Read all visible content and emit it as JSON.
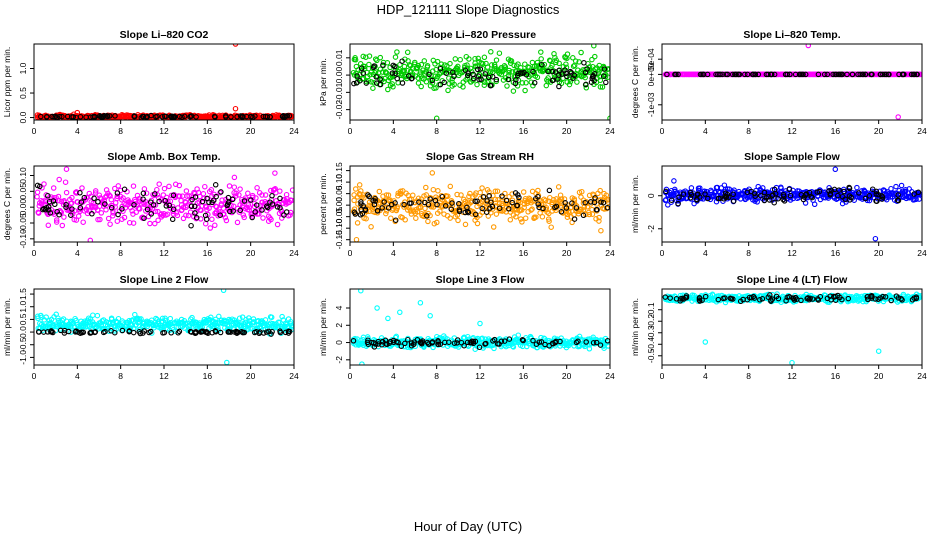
{
  "figure": {
    "title": "HDP_121111  Slope Diagnostics",
    "xlabel": "Hour of Day (UTC)"
  },
  "chart_data": [
    {
      "type": "scatter",
      "title": "Slope Li–820 CO2",
      "ylabel": "Licor ppm per min.",
      "xlim": [
        0,
        24
      ],
      "ylim": [
        -0.05,
        1.5
      ],
      "x_ticks": [
        "0",
        "4",
        "8",
        "12",
        "16",
        "20",
        "24"
      ],
      "y_ticks": [
        "0.0",
        "0.5",
        "1.0"
      ],
      "y_tick_values": [
        0,
        0.5,
        1.0
      ],
      "color": "#ff0000",
      "bulk": {
        "center": 0.02,
        "spread": 0.03,
        "overlay_center": 0.02,
        "overlay_spread": 0.015
      },
      "outliers": [
        {
          "x": 18.6,
          "y": 1.5
        },
        {
          "x": 18.6,
          "y": 0.18
        },
        {
          "x": 4.0,
          "y": 0.1
        }
      ]
    },
    {
      "type": "scatter",
      "title": "Slope Li–820 Pressure",
      "ylabel": "kPa per min.",
      "xlim": [
        0,
        24
      ],
      "ylim": [
        -0.026,
        0.018
      ],
      "x_ticks": [
        "0",
        "4",
        "8",
        "12",
        "16",
        "20",
        "24"
      ],
      "y_ticks": [
        "-0.02",
        "-0.01",
        "0.00",
        "0.01"
      ],
      "y_tick_values": [
        -0.02,
        -0.01,
        0.0,
        0.01
      ],
      "color": "#00cc00",
      "bulk": {
        "center": 0.002,
        "spread": 0.008,
        "overlay_center": 0.0,
        "overlay_spread": 0.006
      },
      "outliers": [
        {
          "x": 22.5,
          "y": 0.017
        },
        {
          "x": 8.0,
          "y": -0.025
        },
        {
          "x": 24.0,
          "y": -0.025
        }
      ]
    },
    {
      "type": "scatter",
      "title": "Slope Li–820 Temp.",
      "ylabel": "degrees C per min.",
      "xlim": [
        0,
        24
      ],
      "ylim": [
        -0.0015,
        0.001
      ],
      "x_ticks": [
        "0",
        "4",
        "8",
        "12",
        "16",
        "20",
        "24"
      ],
      "y_ticks": [
        "-1e-03",
        "0e+00",
        "5e-04"
      ],
      "y_tick_values": [
        -0.001,
        0.0,
        0.0005
      ],
      "color": "#ff00ff",
      "bulk": {
        "center": 0.0,
        "spread": 0.0,
        "overlay_center": 0.0,
        "overlay_spread": 0.0
      },
      "outliers": [
        {
          "x": 13.5,
          "y": 0.00095
        },
        {
          "x": 21.8,
          "y": -0.0014
        }
      ]
    },
    {
      "type": "scatter",
      "title": "Slope Amb. Box Temp.",
      "ylabel": "degrees C per min.",
      "xlim": [
        0,
        24
      ],
      "ylim": [
        -0.11,
        0.13
      ],
      "x_ticks": [
        "0",
        "4",
        "8",
        "12",
        "16",
        "20",
        "24"
      ],
      "y_ticks": [
        "-0.10",
        "-0.05",
        "0.00",
        "0.05",
        "0.10"
      ],
      "y_tick_values": [
        -0.1,
        -0.05,
        0.0,
        0.05,
        0.1
      ],
      "color": "#ff00ff",
      "bulk": {
        "center": 0.01,
        "spread": 0.055,
        "overlay_center": 0.01,
        "overlay_spread": 0.045
      },
      "outliers": [
        {
          "x": 3.0,
          "y": 0.12
        },
        {
          "x": 5.2,
          "y": -0.105
        }
      ]
    },
    {
      "type": "scatter",
      "title": "Slope Gas Stream RH",
      "ylabel": "percent per min.",
      "xlim": [
        0,
        24
      ],
      "ylim": [
        -0.16,
        0.17
      ],
      "x_ticks": [
        "0",
        "4",
        "8",
        "12",
        "16",
        "20",
        "24"
      ],
      "y_ticks": [
        "-0.15",
        "-0.10",
        "-0.05",
        "0.00",
        "0.05",
        "0.10",
        "0.15"
      ],
      "y_tick_values": [
        -0.15,
        -0.1,
        -0.05,
        0.0,
        0.05,
        0.1,
        0.15
      ],
      "color": "#ff9900",
      "bulk": {
        "center": 0.0,
        "spread": 0.06,
        "overlay_center": 0.0,
        "overlay_spread": 0.045
      },
      "outliers": [
        {
          "x": 0.6,
          "y": -0.15
        },
        {
          "x": 7.6,
          "y": 0.14
        }
      ]
    },
    {
      "type": "scatter",
      "title": "Slope Sample Flow",
      "ylabel": "ml/min per min.",
      "xlim": [
        0,
        24
      ],
      "ylim": [
        -2.8,
        1.8
      ],
      "x_ticks": [
        "0",
        "4",
        "8",
        "12",
        "16",
        "20",
        "24"
      ],
      "y_ticks": [
        "-2",
        "0"
      ],
      "y_tick_values": [
        -2,
        0
      ],
      "color": "#0000ff",
      "bulk": {
        "center": 0.05,
        "spread": 0.35,
        "overlay_center": 0.0,
        "overlay_spread": 0.3
      },
      "outliers": [
        {
          "x": 16.0,
          "y": 1.6
        },
        {
          "x": 19.7,
          "y": -2.6
        },
        {
          "x": 1.1,
          "y": 0.9
        }
      ]
    },
    {
      "type": "scatter",
      "title": "Slope Line 2 Flow",
      "ylabel": "ml/min per min.",
      "xlim": [
        0,
        24
      ],
      "ylim": [
        -1.3,
        1.7
      ],
      "x_ticks": [
        "0",
        "4",
        "8",
        "12",
        "16",
        "20",
        "24"
      ],
      "y_ticks": [
        "-1.0",
        "-0.5",
        "0.0",
        "0.5",
        "1.0",
        "1.5"
      ],
      "y_tick_values": [
        -1.0,
        -0.5,
        0.0,
        0.5,
        1.0,
        1.5
      ],
      "color": "#00ffff",
      "bulk": {
        "center": 0.3,
        "spread": 0.25,
        "overlay_center": 0.0,
        "overlay_spread": 0.05
      },
      "outliers": [
        {
          "x": 17.5,
          "y": 1.65
        },
        {
          "x": 17.8,
          "y": -1.2
        }
      ]
    },
    {
      "type": "scatter",
      "title": "Slope Line 3 Flow",
      "ylabel": "ml/min per min.",
      "xlim": [
        0,
        24
      ],
      "ylim": [
        -2.6,
        6.2
      ],
      "x_ticks": [
        "0",
        "4",
        "8",
        "12",
        "16",
        "20",
        "24"
      ],
      "y_ticks": [
        "-2",
        "0",
        "2",
        "4"
      ],
      "y_tick_values": [
        -2,
        0,
        2,
        4
      ],
      "color": "#00ffff",
      "bulk": {
        "center": 0.0,
        "spread": 0.5,
        "overlay_center": 0.0,
        "overlay_spread": 0.35
      },
      "outliers": [
        {
          "x": 1.0,
          "y": 6.0
        },
        {
          "x": 2.5,
          "y": 4.0
        },
        {
          "x": 3.5,
          "y": 2.8
        },
        {
          "x": 4.6,
          "y": 3.5
        },
        {
          "x": 6.5,
          "y": 4.6
        },
        {
          "x": 7.4,
          "y": 3.1
        },
        {
          "x": 12.0,
          "y": 2.2
        },
        {
          "x": 1.1,
          "y": -2.5
        }
      ]
    },
    {
      "type": "scatter",
      "title": "Slope Line 4 (LT) Flow",
      "ylabel": "ml/min per min.",
      "xlim": [
        0,
        24
      ],
      "ylim": [
        -0.58,
        0.08
      ],
      "x_ticks": [
        "0",
        "4",
        "8",
        "12",
        "16",
        "20",
        "24"
      ],
      "y_ticks": [
        "-0.5",
        "-0.4",
        "-0.3",
        "-0.2",
        "-0.1"
      ],
      "y_tick_values": [
        -0.5,
        -0.4,
        -0.3,
        -0.2,
        -0.1
      ],
      "color": "#00ffff",
      "bulk": {
        "center": 0.0,
        "spread": 0.025,
        "overlay_center": 0.0,
        "overlay_spread": 0.02
      },
      "outliers": [
        {
          "x": 4.0,
          "y": -0.38
        },
        {
          "x": 12.0,
          "y": -0.56
        },
        {
          "x": 20.0,
          "y": -0.46
        }
      ]
    }
  ]
}
